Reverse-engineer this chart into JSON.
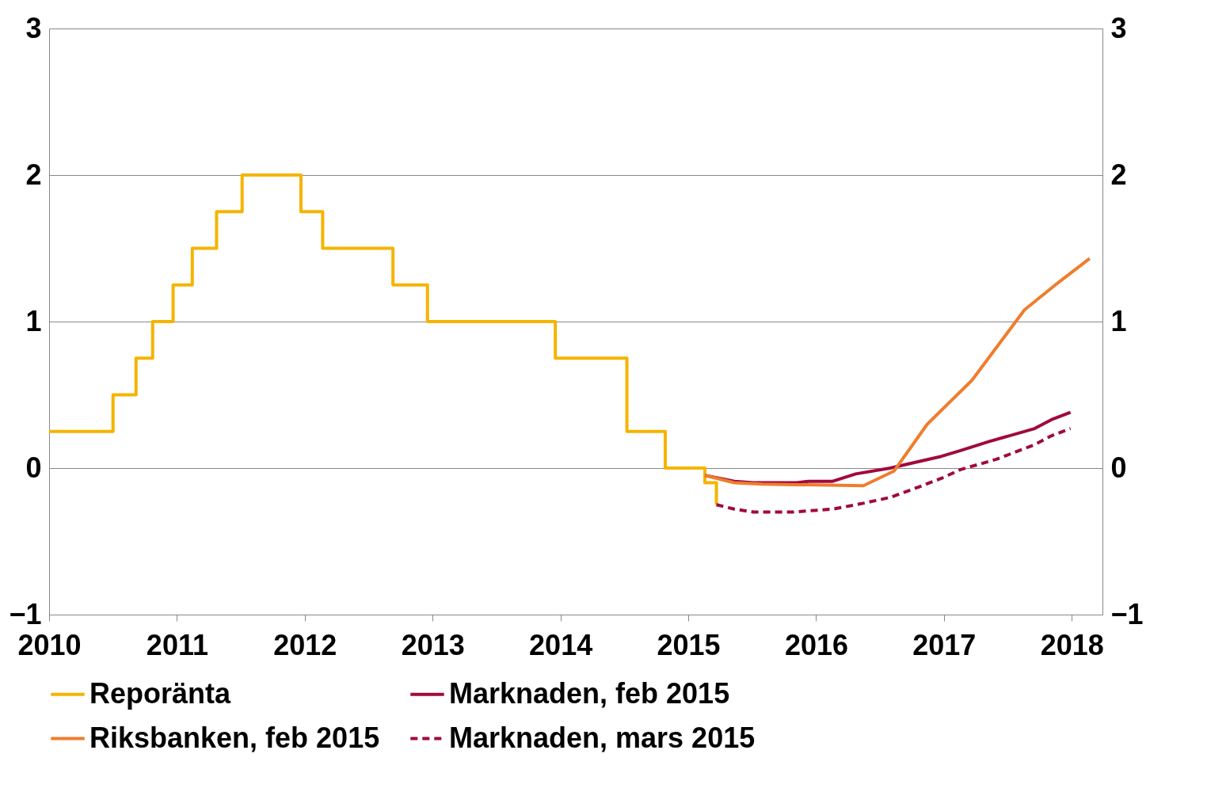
{
  "chart_data": {
    "type": "line",
    "xlim": [
      2010,
      2018.24
    ],
    "xticks": [
      2010,
      2011,
      2012,
      2013,
      2014,
      2015,
      2016,
      2017,
      2018
    ],
    "ylim": [
      -1,
      3
    ],
    "yticks": [
      -1,
      0,
      1,
      2,
      3
    ],
    "y2lim": [
      -1,
      3
    ],
    "y2ticks": [
      -1,
      0,
      1,
      2,
      3
    ],
    "grid": "y",
    "legend": "bottom",
    "series": [
      {
        "name": "Reporänta",
        "type": "step",
        "line_style": "solid",
        "color": "#f5b400",
        "x": [
          2010.0,
          2010.5,
          2010.68,
          2010.81,
          2010.97,
          2011.12,
          2011.31,
          2011.51,
          2011.97,
          2012.14,
          2012.69,
          2012.96,
          2013.96,
          2014.52,
          2014.82,
          2015.13,
          2015.22
        ],
        "values": [
          0.25,
          0.5,
          0.75,
          1.0,
          1.25,
          1.5,
          1.75,
          2.0,
          1.75,
          1.5,
          1.25,
          1.0,
          0.75,
          0.25,
          0.0,
          -0.1,
          -0.25
        ]
      },
      {
        "name": "Marknaden, feb 2015",
        "color": "#a0093f",
        "line_style": "solid",
        "x": [
          2015.13,
          2015.36,
          2015.51,
          2015.85,
          2015.94,
          2016.13,
          2016.31,
          2016.58,
          2016.83,
          2016.98,
          2017.13,
          2017.35,
          2017.71,
          2017.84,
          2017.99
        ],
        "values": [
          -0.05,
          -0.09,
          -0.1,
          -0.1,
          -0.09,
          -0.09,
          -0.04,
          0.0,
          0.05,
          0.08,
          0.12,
          0.18,
          0.27,
          0.33,
          0.38
        ]
      },
      {
        "name": "Riksbanken, feb 2015",
        "color": "#ef7d2d",
        "line_style": "solid",
        "x": [
          2015.13,
          2015.36,
          2015.58,
          2016.37,
          2016.61,
          2016.87,
          2017.22,
          2017.63,
          2017.9,
          2018.14
        ],
        "values": [
          -0.05,
          -0.1,
          -0.11,
          -0.12,
          -0.02,
          0.3,
          0.6,
          1.08,
          1.27,
          1.43
        ]
      },
      {
        "name": "Marknaden, mars 2015",
        "color": "#a0093f",
        "line_style": "dashed",
        "x": [
          2015.22,
          2015.36,
          2015.51,
          2015.82,
          2016.13,
          2016.37,
          2016.58,
          2016.8,
          2016.98,
          2017.13,
          2017.41,
          2017.71,
          2017.84,
          2017.99
        ],
        "values": [
          -0.25,
          -0.28,
          -0.3,
          -0.3,
          -0.28,
          -0.24,
          -0.2,
          -0.13,
          -0.07,
          -0.01,
          0.06,
          0.16,
          0.22,
          0.27
        ]
      }
    ]
  }
}
